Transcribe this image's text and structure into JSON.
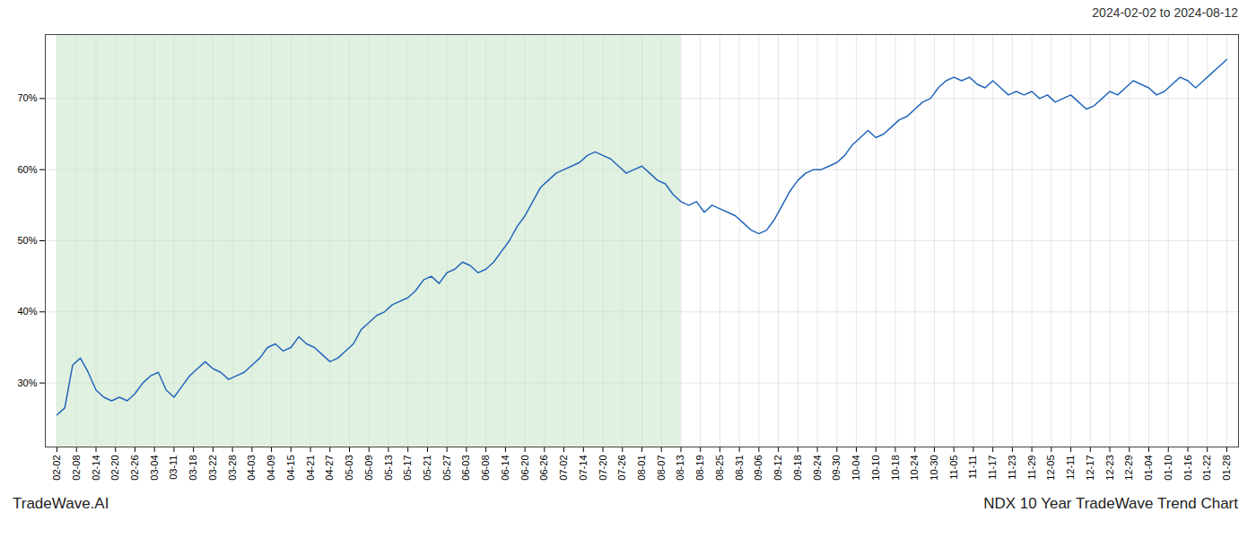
{
  "chart_data": {
    "type": "line",
    "title": "2024-02-02 to 2024-08-12",
    "annotations": [
      "TradeWave.AI",
      "NDX 10 Year TradeWave Trend Chart"
    ],
    "color": "#2266bb",
    "grid": true,
    "xlim": [
      -1.5,
      151.5
    ],
    "xticks": [
      {
        "value": 0,
        "label": "02-02"
      },
      {
        "value": 2.5,
        "label": "02-08"
      },
      {
        "value": 5,
        "label": "02-14"
      },
      {
        "value": 7.5,
        "label": "02-20"
      },
      {
        "value": 10,
        "label": "02-26"
      },
      {
        "value": 12.5,
        "label": "03-04"
      },
      {
        "value": 15,
        "label": "03-11"
      },
      {
        "value": 17.5,
        "label": "03-18"
      },
      {
        "value": 20,
        "label": "03-22"
      },
      {
        "value": 22.5,
        "label": "03-28"
      },
      {
        "value": 25,
        "label": "04-03"
      },
      {
        "value": 27.5,
        "label": "04-09"
      },
      {
        "value": 30,
        "label": "04-15"
      },
      {
        "value": 32.5,
        "label": "04-21"
      },
      {
        "value": 35,
        "label": "04-27"
      },
      {
        "value": 37.5,
        "label": "05-03"
      },
      {
        "value": 40,
        "label": "05-09"
      },
      {
        "value": 42.5,
        "label": "05-13"
      },
      {
        "value": 45,
        "label": "05-17"
      },
      {
        "value": 47.5,
        "label": "05-21"
      },
      {
        "value": 50,
        "label": "05-27"
      },
      {
        "value": 52.5,
        "label": "06-03"
      },
      {
        "value": 55,
        "label": "06-08"
      },
      {
        "value": 57.5,
        "label": "06-14"
      },
      {
        "value": 60,
        "label": "06-20"
      },
      {
        "value": 62.5,
        "label": "06-26"
      },
      {
        "value": 65,
        "label": "07-02"
      },
      {
        "value": 67.5,
        "label": "07-14"
      },
      {
        "value": 70,
        "label": "07-20"
      },
      {
        "value": 72.5,
        "label": "07-26"
      },
      {
        "value": 75,
        "label": "08-01"
      },
      {
        "value": 77.5,
        "label": "08-07"
      },
      {
        "value": 80,
        "label": "08-13"
      },
      {
        "value": 82.5,
        "label": "08-19"
      },
      {
        "value": 85,
        "label": "08-25"
      },
      {
        "value": 87.5,
        "label": "08-31"
      },
      {
        "value": 90,
        "label": "09-06"
      },
      {
        "value": 92.5,
        "label": "09-12"
      },
      {
        "value": 95,
        "label": "09-18"
      },
      {
        "value": 97.5,
        "label": "09-24"
      },
      {
        "value": 100,
        "label": "09-30"
      },
      {
        "value": 102.5,
        "label": "10-04"
      },
      {
        "value": 105,
        "label": "10-10"
      },
      {
        "value": 107.5,
        "label": "10-18"
      },
      {
        "value": 110,
        "label": "10-24"
      },
      {
        "value": 112.5,
        "label": "10-30"
      },
      {
        "value": 115,
        "label": "11-05"
      },
      {
        "value": 117.5,
        "label": "11-11"
      },
      {
        "value": 120,
        "label": "11-17"
      },
      {
        "value": 122.5,
        "label": "11-23"
      },
      {
        "value": 125,
        "label": "11-29"
      },
      {
        "value": 127.5,
        "label": "12-05"
      },
      {
        "value": 130,
        "label": "12-11"
      },
      {
        "value": 132.5,
        "label": "12-17"
      },
      {
        "value": 135,
        "label": "12-23"
      },
      {
        "value": 137.5,
        "label": "12-29"
      },
      {
        "value": 140,
        "label": "01-04"
      },
      {
        "value": 142.5,
        "label": "01-10"
      },
      {
        "value": 145,
        "label": "01-16"
      },
      {
        "value": 147.5,
        "label": "01-22"
      },
      {
        "value": 150,
        "label": "01-28"
      }
    ],
    "ylim": [
      21,
      79
    ],
    "yticks": [
      {
        "value": 30,
        "label": "30%"
      },
      {
        "value": 40,
        "label": "40%"
      },
      {
        "value": 50,
        "label": "50%"
      },
      {
        "value": 60,
        "label": "60%"
      },
      {
        "value": 70,
        "label": "70%"
      }
    ],
    "shade": {
      "start": "02-02",
      "end": "08-13",
      "color": "#c8e6c8"
    },
    "x": [
      0,
      1,
      2,
      3,
      4,
      5,
      6,
      7,
      8,
      9,
      10,
      11,
      12,
      13,
      14,
      15,
      16,
      17,
      18,
      19,
      20,
      21,
      22,
      23,
      24,
      25,
      26,
      27,
      28,
      29,
      30,
      31,
      32,
      33,
      34,
      35,
      36,
      37,
      38,
      39,
      40,
      41,
      42,
      43,
      44,
      45,
      46,
      47,
      48,
      49,
      50,
      51,
      52,
      53,
      54,
      55,
      56,
      57,
      58,
      59,
      60,
      61,
      62,
      63,
      64,
      65,
      66,
      67,
      68,
      69,
      70,
      71,
      72,
      73,
      74,
      75,
      76,
      77,
      78,
      79,
      80,
      81,
      82,
      83,
      84,
      85,
      86,
      87,
      88,
      89,
      90,
      91,
      92,
      93,
      94,
      95,
      96,
      97,
      98,
      99,
      100,
      101,
      102,
      103,
      104,
      105,
      106,
      107,
      108,
      109,
      110,
      111,
      112,
      113,
      114,
      115,
      116,
      117,
      118,
      119,
      120,
      121,
      122,
      123,
      124,
      125,
      126,
      127,
      128,
      129,
      130,
      131,
      132,
      133,
      134,
      135,
      136,
      137,
      138,
      139,
      140,
      141,
      142,
      143,
      144,
      145,
      146,
      147,
      148,
      149,
      150
    ],
    "values": [
      25.5,
      26.5,
      32.5,
      33.5,
      31.5,
      29.0,
      28.0,
      27.5,
      28.0,
      27.5,
      28.5,
      30.0,
      31.0,
      31.5,
      29.0,
      28.0,
      29.5,
      31.0,
      32.0,
      33.0,
      32.0,
      31.5,
      30.5,
      31.0,
      31.5,
      32.5,
      33.5,
      35.0,
      35.5,
      34.5,
      35.0,
      36.5,
      35.5,
      35.0,
      34.0,
      33.0,
      33.5,
      34.5,
      35.5,
      37.5,
      38.5,
      39.5,
      40.0,
      41.0,
      41.5,
      42.0,
      43.0,
      44.5,
      45.0,
      44.0,
      45.5,
      46.0,
      47.0,
      46.5,
      45.5,
      46.0,
      47.0,
      48.5,
      50.0,
      52.0,
      53.5,
      55.5,
      57.5,
      58.5,
      59.5,
      60.0,
      60.5,
      61.0,
      62.0,
      62.5,
      62.0,
      61.5,
      60.5,
      59.5,
      60.0,
      60.5,
      59.5,
      58.5,
      58.0,
      56.5,
      55.5,
      55.0,
      55.5,
      54.0,
      55.0,
      54.5,
      54.0,
      53.5,
      52.5,
      51.5,
      51.0,
      51.5,
      53.0,
      55.0,
      57.0,
      58.5,
      59.5,
      60.0,
      60.0,
      60.5,
      61.0,
      62.0,
      63.5,
      64.5,
      65.5,
      64.5,
      65.0,
      66.0,
      67.0,
      67.5,
      68.5,
      69.5,
      70.0,
      71.5,
      72.5,
      73.0,
      72.5,
      73.0,
      72.0,
      71.5,
      72.5,
      71.5,
      70.5,
      71.0,
      70.5,
      71.0,
      70.0,
      70.5,
      69.5,
      70.0,
      70.5,
      69.5,
      68.5,
      69.0,
      70.0,
      71.0,
      70.5,
      71.5,
      72.5,
      72.0,
      71.5,
      70.5,
      71.0,
      72.0,
      73.0,
      72.5,
      71.5,
      72.5,
      73.5,
      74.5,
      75.5
    ]
  }
}
